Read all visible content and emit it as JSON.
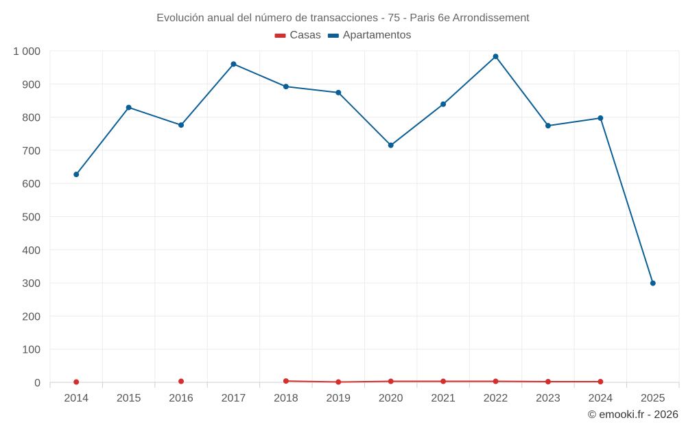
{
  "chart_data": {
    "type": "line",
    "title": "Evolución anual del número de transacciones - 75 - Paris 6e Arrondissement",
    "categories": [
      "2014",
      "2015",
      "2016",
      "2017",
      "2018",
      "2019",
      "2020",
      "2021",
      "2022",
      "2023",
      "2024",
      "2025"
    ],
    "series": [
      {
        "name": "Casas",
        "color": "#d32f2f",
        "values": [
          1,
          null,
          3,
          null,
          4,
          1,
          3,
          3,
          3,
          2,
          2,
          null
        ]
      },
      {
        "name": "Apartamentos",
        "color": "#0a5f96",
        "values": [
          627,
          829,
          776,
          960,
          892,
          874,
          715,
          839,
          983,
          774,
          797,
          299
        ]
      }
    ],
    "ylim": [
      0,
      1000
    ],
    "y_ticks": [
      0,
      100,
      200,
      300,
      400,
      500,
      600,
      700,
      800,
      900,
      1000
    ],
    "y_tick_labels": [
      "0",
      "100",
      "200",
      "300",
      "400",
      "500",
      "600",
      "700",
      "800",
      "900",
      "1 000"
    ],
    "xlabel": "",
    "ylabel": "",
    "legend_position": "top-center",
    "grid": true
  },
  "credit": "© emooki.fr - 2026"
}
